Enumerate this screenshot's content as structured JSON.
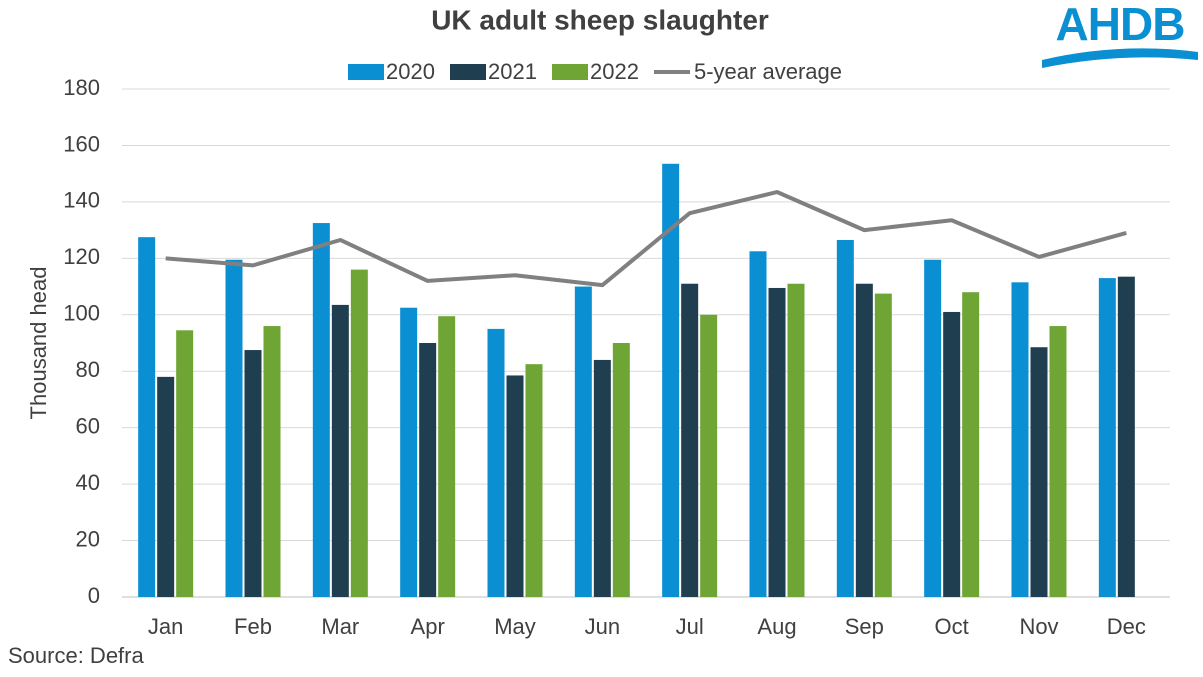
{
  "chart_data": {
    "type": "bar_line",
    "title": "UK adult sheep slaughter",
    "y_label": "Thousand head",
    "source": "Source: Defra",
    "logo": "AHDB",
    "categories": [
      "Jan",
      "Feb",
      "Mar",
      "Apr",
      "May",
      "Jun",
      "Jul",
      "Aug",
      "Sep",
      "Oct",
      "Nov",
      "Dec"
    ],
    "series": [
      {
        "name": "2020",
        "type": "bar",
        "color": "#0b8fd3",
        "values": [
          127.5,
          119.5,
          132.5,
          102.5,
          95,
          110,
          153.5,
          122.5,
          126.5,
          119.5,
          111.5,
          113
        ]
      },
      {
        "name": "2021",
        "type": "bar",
        "color": "#1f3e4f",
        "values": [
          78,
          87.5,
          103.5,
          90,
          78.5,
          84,
          111,
          109.5,
          111,
          101,
          88.5,
          113.5
        ]
      },
      {
        "name": "2022",
        "type": "bar",
        "color": "#6ea535",
        "values": [
          94.5,
          96,
          116,
          99.5,
          82.5,
          90,
          100,
          111,
          107.5,
          108,
          96,
          null
        ]
      },
      {
        "name": "5-year average",
        "type": "line",
        "color": "#808080",
        "values": [
          120,
          117.5,
          126.5,
          112,
          114,
          110.5,
          136,
          143.5,
          130,
          133.5,
          120.5,
          129
        ]
      }
    ],
    "ylim": [
      0,
      180
    ],
    "yticks": [
      0,
      20,
      40,
      60,
      80,
      100,
      120,
      140,
      160,
      180
    ],
    "grid": true
  }
}
